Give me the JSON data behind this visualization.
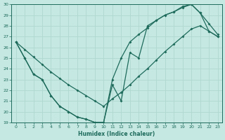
{
  "xlabel": "Humidex (Indice chaleur)",
  "xlim": [
    -0.5,
    23.5
  ],
  "ylim": [
    19,
    30
  ],
  "xticks": [
    0,
    1,
    2,
    3,
    4,
    5,
    6,
    7,
    8,
    9,
    10,
    11,
    12,
    13,
    14,
    15,
    16,
    17,
    18,
    19,
    20,
    21,
    22,
    23
  ],
  "yticks": [
    19,
    20,
    21,
    22,
    23,
    24,
    25,
    26,
    27,
    28,
    29,
    30
  ],
  "bg_color": "#c5e8e2",
  "line_color": "#1e6b5c",
  "grid_color": "#b0d8d0",
  "line_straight_x": [
    0,
    1,
    2,
    3,
    4,
    5,
    6,
    7,
    8,
    9,
    10,
    11,
    12,
    13,
    14,
    15,
    16,
    17,
    18,
    19,
    20,
    21,
    22,
    23
  ],
  "line_straight_y": [
    26.5,
    25.8,
    25.1,
    24.4,
    23.7,
    23.1,
    22.5,
    22.0,
    21.5,
    21.0,
    20.5,
    21.2,
    21.8,
    22.5,
    23.3,
    24.0,
    24.8,
    25.6,
    26.3,
    27.0,
    27.7,
    28.0,
    27.5,
    27.0
  ],
  "line_curve_x": [
    0,
    1,
    2,
    3,
    4,
    5,
    6,
    7,
    8,
    9,
    10,
    11,
    12,
    13,
    14,
    15,
    16,
    17,
    18,
    19,
    20,
    21,
    22,
    23
  ],
  "line_curve_y": [
    26.5,
    25.0,
    23.5,
    23.0,
    21.5,
    20.5,
    20.0,
    19.5,
    19.3,
    19.0,
    19.0,
    23.0,
    25.0,
    26.5,
    27.2,
    27.8,
    28.5,
    29.0,
    29.3,
    29.7,
    30.0,
    29.2,
    28.2,
    27.2
  ],
  "line_zigzag_x": [
    0,
    1,
    2,
    3,
    4,
    5,
    6,
    7,
    8,
    9,
    10,
    11,
    12,
    13,
    14,
    15,
    16,
    17,
    18,
    19,
    20,
    21,
    22,
    23
  ],
  "line_zigzag_y": [
    26.5,
    25.0,
    23.5,
    23.0,
    21.5,
    20.5,
    20.0,
    19.5,
    19.3,
    19.0,
    19.0,
    22.5,
    21.0,
    25.5,
    25.0,
    28.0,
    28.5,
    29.0,
    29.3,
    29.8,
    30.0,
    29.2,
    27.5,
    27.0
  ]
}
